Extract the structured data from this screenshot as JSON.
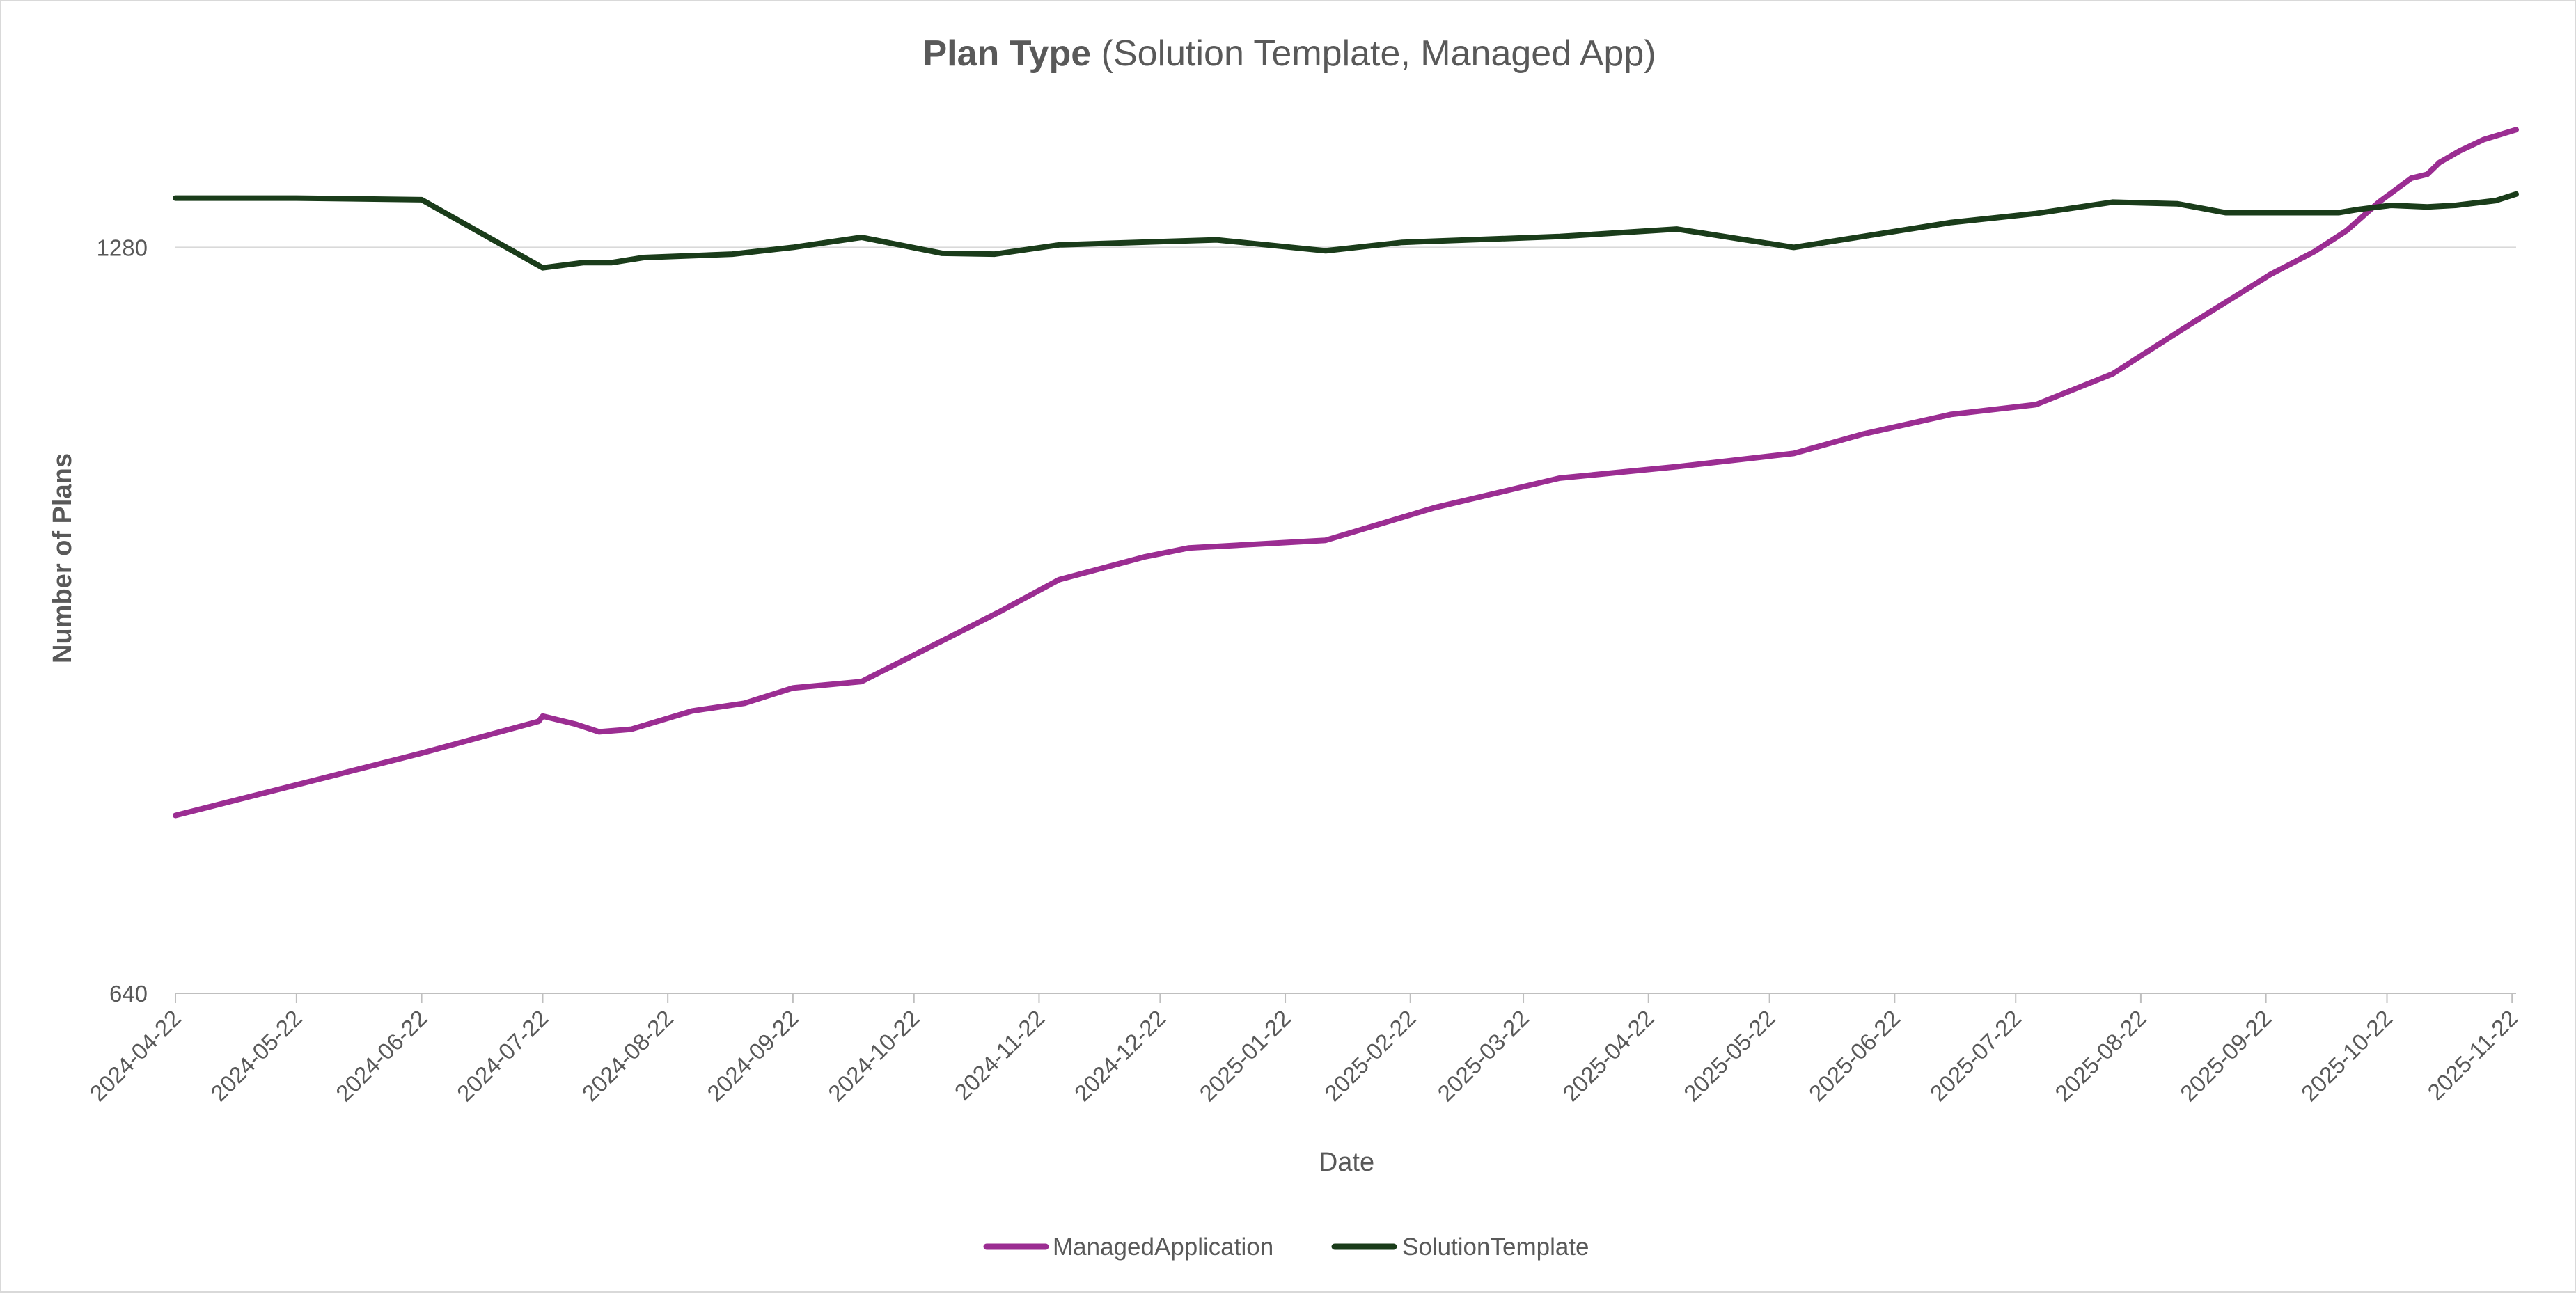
{
  "chart_data": {
    "type": "line",
    "title_bold": "Plan Type",
    "title_rest": " (Solution Template, Managed App)",
    "xlabel": "Date",
    "ylabel": "Number of Plans",
    "y_scale": "log",
    "ylim": [
      640,
      1460
    ],
    "y_ticks": [
      640,
      1280
    ],
    "grid": true,
    "legend_position": "bottom",
    "x_ticks": [
      "2024-04-22",
      "2024-05-22",
      "2024-06-22",
      "2024-07-22",
      "2024-08-22",
      "2024-09-22",
      "2024-10-22",
      "2024-11-22",
      "2024-12-22",
      "2025-01-22",
      "2025-02-22",
      "2025-03-22",
      "2025-04-22",
      "2025-05-22",
      "2025-06-22",
      "2025-07-22",
      "2025-08-22",
      "2025-09-22",
      "2025-10-22",
      "2025-11-22"
    ],
    "xlim": [
      "2024-04-22",
      "2025-11-23"
    ],
    "series": [
      {
        "name": "ManagedApplication",
        "color": "#9b2d92",
        "points": [
          [
            "2024-04-22",
            755
          ],
          [
            "2024-06-22",
            800
          ],
          [
            "2024-07-21",
            824
          ],
          [
            "2024-07-22",
            828
          ],
          [
            "2024-07-30",
            822
          ],
          [
            "2024-08-05",
            816
          ],
          [
            "2024-08-13",
            818
          ],
          [
            "2024-08-28",
            832
          ],
          [
            "2024-09-10",
            838
          ],
          [
            "2024-09-22",
            850
          ],
          [
            "2024-10-09",
            855
          ],
          [
            "2024-11-12",
            912
          ],
          [
            "2024-11-27",
            940
          ],
          [
            "2024-12-18",
            960
          ],
          [
            "2024-12-29",
            968
          ],
          [
            "2025-02-01",
            975
          ],
          [
            "2025-02-28",
            1005
          ],
          [
            "2025-03-31",
            1033
          ],
          [
            "2025-04-29",
            1044
          ],
          [
            "2025-05-28",
            1057
          ],
          [
            "2025-06-14",
            1076
          ],
          [
            "2025-07-06",
            1096
          ],
          [
            "2025-07-27",
            1106
          ],
          [
            "2025-08-15",
            1138
          ],
          [
            "2025-09-03",
            1191
          ],
          [
            "2025-09-21",
            1242
          ],
          [
            "2025-09-23",
            1248
          ],
          [
            "2025-10-04",
            1275
          ],
          [
            "2025-10-12",
            1300
          ],
          [
            "2025-10-20",
            1335
          ],
          [
            "2025-10-28",
            1365
          ],
          [
            "2025-11-01",
            1370
          ],
          [
            "2025-11-04",
            1385
          ],
          [
            "2025-11-09",
            1400
          ],
          [
            "2025-11-15",
            1415
          ],
          [
            "2025-11-23",
            1428
          ]
        ]
      },
      {
        "name": "SolutionTemplate",
        "color": "#1a3c1a",
        "points": [
          [
            "2024-04-22",
            1340
          ],
          [
            "2024-05-22",
            1340
          ],
          [
            "2024-06-22",
            1338
          ],
          [
            "2024-07-22",
            1256
          ],
          [
            "2024-08-01",
            1262
          ],
          [
            "2024-08-08",
            1262
          ],
          [
            "2024-08-16",
            1268
          ],
          [
            "2024-09-07",
            1272
          ],
          [
            "2024-09-22",
            1280
          ],
          [
            "2024-10-09",
            1292
          ],
          [
            "2024-10-29",
            1273
          ],
          [
            "2024-11-11",
            1272
          ],
          [
            "2024-11-27",
            1283
          ],
          [
            "2025-01-05",
            1289
          ],
          [
            "2025-02-01",
            1276
          ],
          [
            "2025-02-20",
            1286
          ],
          [
            "2025-03-31",
            1293
          ],
          [
            "2025-04-29",
            1302
          ],
          [
            "2025-05-28",
            1280
          ],
          [
            "2025-06-14",
            1293
          ],
          [
            "2025-07-06",
            1310
          ],
          [
            "2025-07-27",
            1321
          ],
          [
            "2025-08-15",
            1335
          ],
          [
            "2025-08-31",
            1333
          ],
          [
            "2025-09-12",
            1322
          ],
          [
            "2025-09-23",
            1322
          ],
          [
            "2025-10-01",
            1322
          ],
          [
            "2025-10-10",
            1322
          ],
          [
            "2025-10-15",
            1326
          ],
          [
            "2025-10-23",
            1331
          ],
          [
            "2025-11-01",
            1329
          ],
          [
            "2025-11-08",
            1331
          ],
          [
            "2025-11-18",
            1337
          ],
          [
            "2025-11-23",
            1345
          ]
        ]
      }
    ]
  }
}
